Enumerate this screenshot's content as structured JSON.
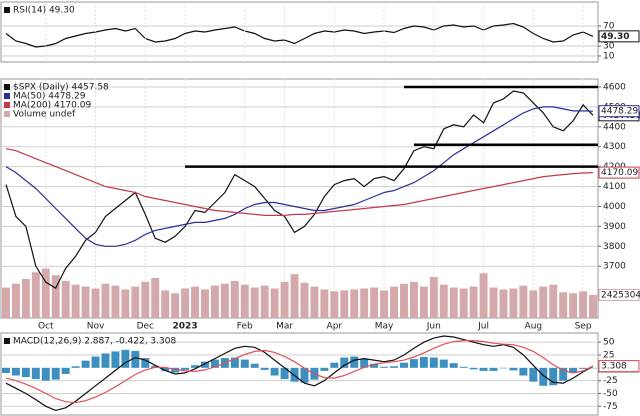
{
  "chart_data": [
    {
      "type": "line",
      "title": "RSI(14) 49.30",
      "ylim": [
        0,
        100
      ],
      "yticks": [
        70,
        30,
        10
      ],
      "grid": true,
      "series": [
        {
          "color": "#111111",
          "current_label": "49.30",
          "values": [
            55,
            40,
            35,
            28,
            30,
            35,
            45,
            50,
            55,
            58,
            62,
            65,
            60,
            65,
            45,
            38,
            40,
            45,
            55,
            60,
            58,
            62,
            65,
            68,
            60,
            55,
            45,
            40,
            42,
            35,
            45,
            55,
            60,
            58,
            62,
            60,
            55,
            58,
            60,
            57,
            65,
            70,
            68,
            62,
            70,
            72,
            68,
            70,
            62,
            70,
            72,
            75,
            68,
            55,
            45,
            38,
            40,
            52,
            58,
            49.3
          ]
        }
      ]
    },
    {
      "type": "line",
      "title": "$SPX (Daily) 4457.58",
      "ylim": [
        3440,
        4635
      ],
      "yticks": [
        3700,
        3800,
        3900,
        4000,
        4100,
        4200,
        4300,
        4400,
        4500,
        4600
      ],
      "y2lim": [
        0,
        25000000
      ],
      "grid": true,
      "categories": [
        null,
        null,
        null,
        null,
        "Oct",
        null,
        null,
        null,
        null,
        "Nov",
        null,
        null,
        null,
        null,
        "Dec",
        null,
        null,
        null,
        "2023",
        null,
        null,
        null,
        null,
        null,
        "Feb",
        null,
        null,
        null,
        "Mar",
        null,
        null,
        null,
        null,
        "Apr",
        null,
        null,
        null,
        null,
        "May",
        null,
        null,
        null,
        null,
        "Jun",
        null,
        null,
        null,
        null,
        "Jul",
        null,
        null,
        null,
        null,
        "Aug",
        null,
        null,
        null,
        null,
        "Sep",
        null
      ],
      "hlines": [
        {
          "value": 4600,
          "from": 40
        },
        {
          "value": 4310,
          "from": 41
        },
        {
          "value": 4200,
          "from": 18
        }
      ],
      "series": [
        {
          "color": "#111111",
          "show_current": true,
          "values": [
            4110,
            3950,
            3900,
            3700,
            3620,
            3590,
            3690,
            3750,
            3830,
            3870,
            3950,
            3990,
            4030,
            4070,
            3960,
            3840,
            3820,
            3850,
            3900,
            3980,
            3970,
            4020,
            4070,
            4160,
            4130,
            4100,
            4040,
            3980,
            3950,
            3870,
            3900,
            3960,
            4050,
            4110,
            4130,
            4140,
            4100,
            4140,
            4150,
            4130,
            4190,
            4280,
            4300,
            4290,
            4390,
            4410,
            4400,
            4460,
            4420,
            4520,
            4540,
            4580,
            4570,
            4520,
            4470,
            4400,
            4380,
            4430,
            4510,
            4457.58
          ]
        },
        {
          "name": "MA(50) 4478.29",
          "color": "#2b2f9c",
          "show_current": true,
          "values": [
            4200,
            4170,
            4130,
            4090,
            4040,
            3990,
            3940,
            3890,
            3840,
            3810,
            3800,
            3800,
            3810,
            3830,
            3860,
            3880,
            3890,
            3900,
            3910,
            3920,
            3920,
            3930,
            3940,
            3960,
            3990,
            4010,
            4020,
            4020,
            4010,
            4000,
            3990,
            3980,
            3980,
            3990,
            4000,
            4010,
            4030,
            4050,
            4070,
            4080,
            4100,
            4120,
            4150,
            4180,
            4220,
            4260,
            4290,
            4320,
            4350,
            4380,
            4410,
            4440,
            4470,
            4490,
            4500,
            4500,
            4490,
            4480,
            4480,
            4478.29
          ]
        },
        {
          "name": "MA(200) 4170.09",
          "color": "#c4394b",
          "show_current": true,
          "values": [
            4290,
            4280,
            4260,
            4240,
            4220,
            4200,
            4180,
            4160,
            4140,
            4120,
            4100,
            4090,
            4080,
            4070,
            4050,
            4040,
            4030,
            4020,
            4010,
            4000,
            3990,
            3980,
            3975,
            3970,
            3965,
            3960,
            3955,
            3955,
            3955,
            3960,
            3960,
            3965,
            3970,
            3975,
            3980,
            3985,
            3990,
            3995,
            4000,
            4005,
            4010,
            4020,
            4030,
            4040,
            4050,
            4060,
            4070,
            4080,
            4090,
            4100,
            4110,
            4120,
            4130,
            4140,
            4150,
            4155,
            4160,
            4165,
            4168,
            4170.09
          ]
        },
        {
          "name": "Volume undef",
          "type": "bar",
          "axis": "y2",
          "color": "#d4a9ab",
          "show_current": true,
          "values": [
            3200000,
            3600000,
            4100000,
            4800000,
            5200000,
            4500000,
            3900000,
            3500000,
            3300000,
            3100000,
            3600000,
            3400000,
            3000000,
            3300000,
            3800000,
            4200000,
            2900000,
            2600000,
            3100000,
            3300000,
            3000000,
            3400000,
            3600000,
            3900000,
            3500000,
            3200000,
            3400000,
            3100000,
            3800000,
            4600000,
            3700000,
            3300000,
            3000000,
            2800000,
            2900000,
            3000000,
            3100000,
            3200000,
            2900000,
            3300000,
            3600000,
            3800000,
            3300000,
            4300000,
            3500000,
            3200000,
            3100000,
            3300000,
            4700000,
            3200000,
            3000000,
            3100000,
            3400000,
            2900000,
            3300000,
            3500000,
            2700000,
            2600000,
            2800000,
            2425304
          ]
        }
      ]
    },
    {
      "type": "line",
      "title": "MACD(12,26,9) 2.887, -0.422, 3.308",
      "ylim": [
        -90,
        62
      ],
      "yticks": [
        50,
        25,
        -25,
        -50,
        -75
      ],
      "grid": true,
      "series": [
        {
          "type": "bar",
          "color": "#3d8fbf",
          "values": [
            -10,
            -15,
            -18,
            -22,
            -25,
            -23,
            -12,
            3,
            14,
            22,
            28,
            32,
            35,
            33,
            19,
            4,
            -6,
            -9,
            -4,
            5,
            12,
            16,
            19,
            20,
            16,
            8,
            -4,
            -15,
            -22,
            -27,
            -29,
            -23,
            -6,
            10,
            20,
            22,
            17,
            8,
            2,
            3,
            10,
            17,
            21,
            20,
            16,
            9,
            2,
            -3,
            -6,
            -6,
            -1,
            -5,
            -15,
            -27,
            -35,
            -34,
            -25,
            -10,
            -2,
            -0.422
          ]
        },
        {
          "color": "#111111",
          "show_current": true,
          "values": [
            -30,
            -40,
            -50,
            -62,
            -75,
            -83,
            -78,
            -65,
            -50,
            -35,
            -20,
            -5,
            10,
            20,
            15,
            5,
            -5,
            -12,
            -10,
            -2,
            8,
            18,
            28,
            38,
            42,
            40,
            30,
            15,
            0,
            -15,
            -30,
            -35,
            -25,
            -10,
            5,
            15,
            18,
            15,
            12,
            15,
            25,
            38,
            50,
            58,
            62,
            60,
            55,
            50,
            45,
            42,
            45,
            40,
            25,
            5,
            -15,
            -28,
            -30,
            -20,
            -8,
            2.887
          ]
        },
        {
          "color": "#e0505a",
          "show_current": true,
          "values": [
            -20,
            -25,
            -32,
            -40,
            -50,
            -60,
            -66,
            -68,
            -64,
            -57,
            -48,
            -37,
            -25,
            -13,
            -4,
            1,
            1,
            -3,
            -6,
            -7,
            -4,
            2,
            9,
            18,
            26,
            32,
            34,
            30,
            22,
            12,
            -1,
            -12,
            -19,
            -20,
            -15,
            -7,
            1,
            7,
            10,
            12,
            15,
            21,
            29,
            38,
            46,
            51,
            53,
            53,
            51,
            48,
            46,
            45,
            40,
            32,
            20,
            6,
            -5,
            -10,
            -6,
            3.308
          ]
        }
      ]
    }
  ]
}
